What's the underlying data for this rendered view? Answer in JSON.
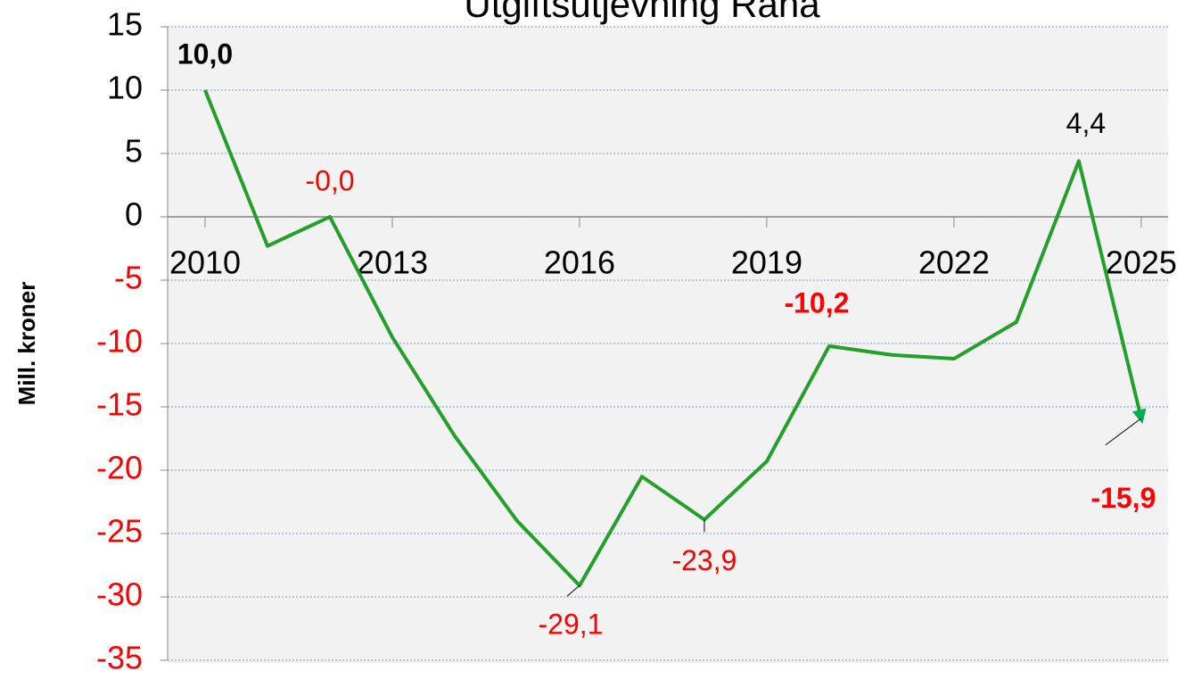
{
  "chart_data": {
    "type": "line",
    "title": "Utgiftsutjevning Rana",
    "y_label": "Mill. kroner",
    "x": [
      2010,
      2011,
      2012,
      2013,
      2014,
      2015,
      2016,
      2017,
      2018,
      2019,
      2020,
      2021,
      2022,
      2023,
      2024,
      2025
    ],
    "series": [
      {
        "name": "Utgiftsutjevning",
        "color": "#22a02a",
        "values": [
          10.0,
          -2.3,
          0.0,
          -9.5,
          -17.3,
          -24.0,
          -29.1,
          -20.5,
          -23.9,
          -19.3,
          -10.2,
          -10.9,
          -11.2,
          -8.3,
          4.4,
          -15.9
        ],
        "value_labels": [
          "10,0",
          null,
          "-0,0",
          null,
          null,
          null,
          "-29,1",
          null,
          "-23,9",
          null,
          "-10,2",
          null,
          null,
          null,
          "4,4",
          "-15,9"
        ]
      }
    ],
    "xlim": [
      2009.4,
      2025.43
    ],
    "xticks": [
      2010,
      2013,
      2016,
      2019,
      2022,
      2025
    ],
    "ylim": [
      -35,
      15
    ],
    "yticks": [
      -35,
      -30,
      -25,
      -20,
      -15,
      -10,
      -5,
      0,
      5,
      10,
      15
    ],
    "grid": true
  }
}
